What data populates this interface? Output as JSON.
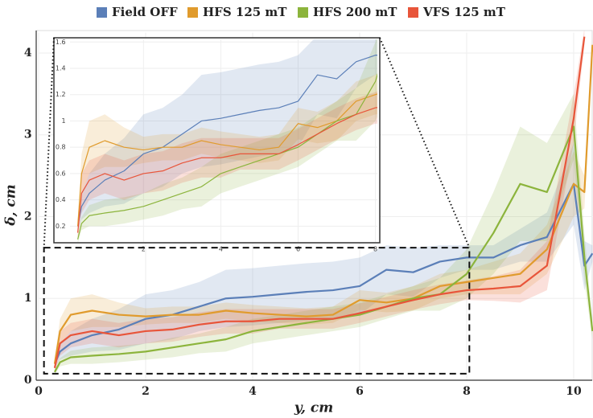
{
  "chart_data": {
    "type": "line",
    "xlabel": "y, cm",
    "ylabel": "δ, cm",
    "x": [
      0.3,
      0.4,
      0.6,
      1,
      1.5,
      2,
      2.5,
      3,
      3.5,
      4,
      4.5,
      5,
      5.5,
      6,
      6.5,
      7,
      7.5,
      8,
      8.5,
      9,
      9.5,
      10,
      10.2,
      10.35
    ],
    "xlim": [
      0,
      10.35
    ],
    "ylim": [
      0,
      4.25
    ],
    "xticks": [
      0,
      2,
      4,
      6,
      8,
      10
    ],
    "yticks": [
      0,
      1,
      2,
      3,
      4
    ],
    "grid": true,
    "series": [
      {
        "name": "Field OFF",
        "color": "#5b7fb8",
        "values": [
          0.2,
          0.35,
          0.45,
          0.55,
          0.62,
          0.75,
          0.8,
          0.9,
          1.0,
          1.02,
          1.05,
          1.08,
          1.1,
          1.15,
          1.35,
          1.32,
          1.45,
          1.5,
          1.5,
          1.65,
          1.75,
          2.4,
          1.4,
          1.55
        ],
        "lower": [
          0.15,
          0.25,
          0.3,
          0.35,
          0.37,
          0.45,
          0.5,
          0.6,
          0.65,
          0.67,
          0.7,
          0.73,
          0.75,
          0.8,
          1.05,
          1.02,
          1.25,
          1.35,
          1.35,
          1.45,
          1.45,
          1.9,
          1.1,
          1.45
        ],
        "upper": [
          0.25,
          0.45,
          0.6,
          0.75,
          0.87,
          1.05,
          1.1,
          1.2,
          1.35,
          1.37,
          1.4,
          1.43,
          1.45,
          1.5,
          1.65,
          1.62,
          1.65,
          1.65,
          1.65,
          1.85,
          2.05,
          2.9,
          1.7,
          1.65
        ]
      },
      {
        "name": "HFS 125 mT",
        "color": "#e09b2d",
        "values": [
          0.2,
          0.6,
          0.8,
          0.85,
          0.8,
          0.78,
          0.8,
          0.8,
          0.85,
          0.82,
          0.8,
          0.78,
          0.8,
          0.98,
          0.95,
          1.0,
          1.15,
          1.2,
          1.25,
          1.3,
          1.6,
          2.4,
          2.3,
          4.1
        ],
        "lower": [
          0.15,
          0.45,
          0.6,
          0.65,
          0.65,
          0.68,
          0.7,
          0.7,
          0.75,
          0.72,
          0.7,
          0.68,
          0.7,
          0.86,
          0.83,
          0.85,
          1.0,
          1.05,
          1.05,
          1.05,
          1.3,
          2.0,
          2.1,
          4.0
        ],
        "upper": [
          0.25,
          0.75,
          1.0,
          1.05,
          0.95,
          0.88,
          0.9,
          0.9,
          0.95,
          0.92,
          0.9,
          0.88,
          0.9,
          1.1,
          1.07,
          1.15,
          1.3,
          1.35,
          1.45,
          1.55,
          1.9,
          2.8,
          2.5,
          4.2
        ]
      },
      {
        "name": "HFS 200 mT",
        "color": "#8cb43c",
        "values": [
          0.1,
          0.22,
          0.28,
          0.3,
          0.32,
          0.35,
          0.4,
          0.45,
          0.5,
          0.6,
          0.65,
          0.7,
          0.75,
          0.8,
          0.9,
          1.0,
          1.05,
          1.3,
          1.8,
          2.4,
          2.3,
          3.1,
          1.5,
          0.6
        ],
        "lower": [
          0.07,
          0.17,
          0.2,
          0.2,
          0.22,
          0.25,
          0.28,
          0.33,
          0.35,
          0.45,
          0.5,
          0.55,
          0.6,
          0.65,
          0.75,
          0.85,
          0.85,
          1.0,
          1.3,
          1.7,
          1.7,
          2.7,
          1.2,
          0.5
        ],
        "upper": [
          0.13,
          0.27,
          0.36,
          0.4,
          0.42,
          0.45,
          0.52,
          0.57,
          0.65,
          0.75,
          0.8,
          0.85,
          0.9,
          0.95,
          1.05,
          1.15,
          1.25,
          1.6,
          2.3,
          3.1,
          2.9,
          3.5,
          1.8,
          0.7
        ]
      },
      {
        "name": "VFS 125 mT",
        "color": "#e8553a",
        "values": [
          0.15,
          0.45,
          0.55,
          0.6,
          0.55,
          0.6,
          0.62,
          0.68,
          0.72,
          0.72,
          0.75,
          0.75,
          0.75,
          0.82,
          0.9,
          0.98,
          1.05,
          1.1,
          1.12,
          1.15,
          1.4,
          3.2,
          4.2,
          null
        ],
        "lower": [
          0.1,
          0.3,
          0.4,
          0.45,
          0.4,
          0.45,
          0.47,
          0.53,
          0.57,
          0.57,
          0.63,
          0.63,
          0.63,
          0.7,
          0.78,
          0.86,
          0.93,
          0.98,
          0.97,
          0.95,
          1.1,
          2.9,
          4.1,
          null
        ],
        "upper": [
          0.2,
          0.6,
          0.7,
          0.75,
          0.7,
          0.75,
          0.77,
          0.83,
          0.87,
          0.87,
          0.87,
          0.87,
          0.87,
          0.94,
          1.02,
          1.1,
          1.17,
          1.22,
          1.27,
          1.35,
          1.7,
          3.5,
          4.3,
          null
        ]
      }
    ],
    "inset": {
      "xlim": [
        0.1,
        8.05
      ],
      "ylim": [
        0.08,
        1.62
      ],
      "xticks": [
        2,
        4,
        6,
        8
      ],
      "yticks": [
        0.2,
        0.4,
        0.6,
        0.8,
        1.0,
        1.2,
        1.4,
        1.6
      ]
    }
  }
}
